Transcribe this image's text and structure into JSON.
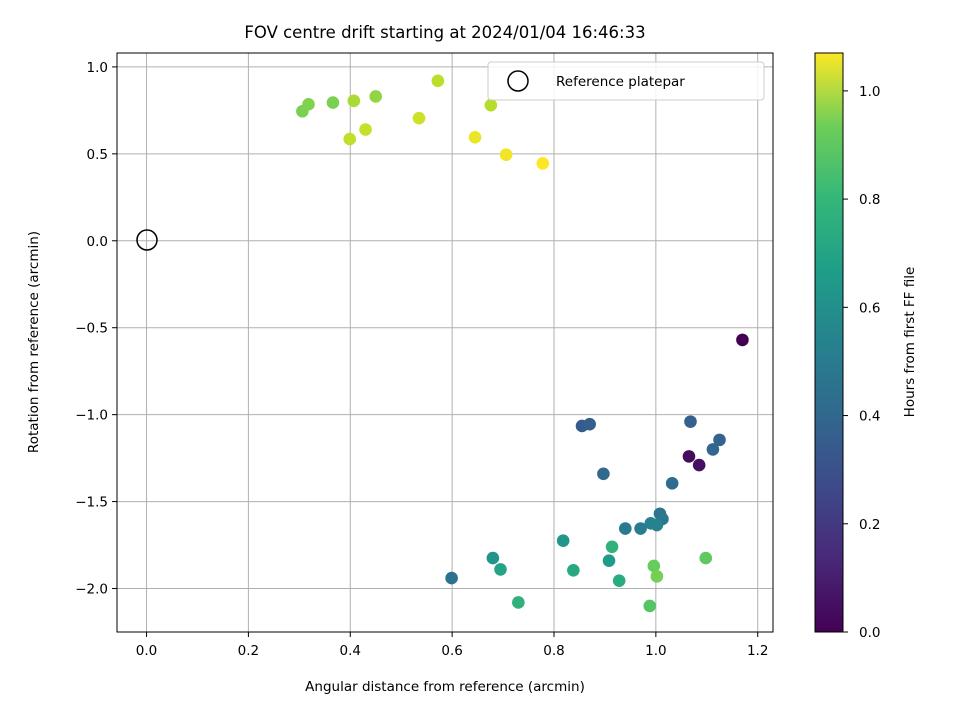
{
  "chart_data": {
    "type": "scatter",
    "title": "FOV centre drift starting at 2024/01/04 16:46:33",
    "xlabel": "Angular distance from reference (arcmin)",
    "ylabel": "Rotation from reference (arcmin)",
    "xlim": [
      -0.058,
      1.23
    ],
    "ylim": [
      -2.25,
      1.08
    ],
    "xticks": [
      0.0,
      0.2,
      0.4,
      0.6,
      0.8,
      1.0,
      1.2
    ],
    "xtick_labels": [
      "0.0",
      "0.2",
      "0.4",
      "0.6",
      "0.8",
      "1.0",
      "1.2"
    ],
    "yticks": [
      -2.0,
      -1.5,
      -1.0,
      -0.5,
      0.0,
      0.5,
      1.0
    ],
    "ytick_labels": [
      "−2.0",
      "−1.5",
      "−1.0",
      "−0.5",
      "0.0",
      "0.5",
      "1.0"
    ],
    "grid": true,
    "legend": {
      "placement": "upper-right",
      "entries": [
        "Reference platepar"
      ]
    },
    "colorbar": {
      "label": "Hours from first FF file",
      "colormap": "viridis",
      "range": [
        0.0,
        1.07
      ],
      "ticks": [
        0.0,
        0.2,
        0.4,
        0.6,
        0.8,
        1.0
      ],
      "tick_labels": [
        "0.0",
        "0.2",
        "0.4",
        "0.6",
        "0.8",
        "1.0"
      ]
    },
    "reference_point": {
      "x": 0.0,
      "y": 0.0
    },
    "points": [
      {
        "x": 1.17,
        "y": -0.57,
        "hours": 0.0
      },
      {
        "x": 1.065,
        "y": -1.24,
        "hours": 0.03
      },
      {
        "x": 1.085,
        "y": -1.29,
        "hours": 0.04
      },
      {
        "x": 0.855,
        "y": -1.065,
        "hours": 0.3
      },
      {
        "x": 0.87,
        "y": -1.055,
        "hours": 0.32
      },
      {
        "x": 1.068,
        "y": -1.04,
        "hours": 0.33
      },
      {
        "x": 1.125,
        "y": -1.145,
        "hours": 0.34
      },
      {
        "x": 1.112,
        "y": -1.2,
        "hours": 0.35
      },
      {
        "x": 0.897,
        "y": -1.34,
        "hours": 0.36
      },
      {
        "x": 1.032,
        "y": -1.395,
        "hours": 0.38
      },
      {
        "x": 0.599,
        "y": -1.94,
        "hours": 0.4
      },
      {
        "x": 1.008,
        "y": -1.57,
        "hours": 0.42
      },
      {
        "x": 1.013,
        "y": -1.6,
        "hours": 0.43
      },
      {
        "x": 0.94,
        "y": -1.655,
        "hours": 0.44
      },
      {
        "x": 0.97,
        "y": -1.655,
        "hours": 0.45
      },
      {
        "x": 0.99,
        "y": -1.625,
        "hours": 0.47
      },
      {
        "x": 1.002,
        "y": -1.635,
        "hours": 0.48
      },
      {
        "x": 0.68,
        "y": -1.825,
        "hours": 0.55
      },
      {
        "x": 0.818,
        "y": -1.725,
        "hours": 0.56
      },
      {
        "x": 0.908,
        "y": -1.84,
        "hours": 0.58
      },
      {
        "x": 0.695,
        "y": -1.89,
        "hours": 0.62
      },
      {
        "x": 0.838,
        "y": -1.895,
        "hours": 0.64
      },
      {
        "x": 0.928,
        "y": -1.955,
        "hours": 0.66
      },
      {
        "x": 0.73,
        "y": -2.08,
        "hours": 0.68
      },
      {
        "x": 0.914,
        "y": -1.76,
        "hours": 0.69
      },
      {
        "x": 0.988,
        "y": -2.1,
        "hours": 0.78
      },
      {
        "x": 1.098,
        "y": -1.825,
        "hours": 0.8
      },
      {
        "x": 0.996,
        "y": -1.87,
        "hours": 0.82
      },
      {
        "x": 1.002,
        "y": -1.93,
        "hours": 0.84
      },
      {
        "x": 0.306,
        "y": 0.745,
        "hours": 0.85
      },
      {
        "x": 0.318,
        "y": 0.785,
        "hours": 0.86
      },
      {
        "x": 0.366,
        "y": 0.795,
        "hours": 0.85
      },
      {
        "x": 0.45,
        "y": 0.83,
        "hours": 0.89
      },
      {
        "x": 0.407,
        "y": 0.805,
        "hours": 0.93
      },
      {
        "x": 0.676,
        "y": 0.78,
        "hours": 0.95
      },
      {
        "x": 0.399,
        "y": 0.585,
        "hours": 0.97
      },
      {
        "x": 0.43,
        "y": 0.64,
        "hours": 0.98
      },
      {
        "x": 0.535,
        "y": 0.705,
        "hours": 0.99
      },
      {
        "x": 0.572,
        "y": 0.92,
        "hours": 0.96
      },
      {
        "x": 0.645,
        "y": 0.595,
        "hours": 1.04
      },
      {
        "x": 0.706,
        "y": 0.495,
        "hours": 1.05
      },
      {
        "x": 0.778,
        "y": 0.445,
        "hours": 1.07
      }
    ]
  }
}
